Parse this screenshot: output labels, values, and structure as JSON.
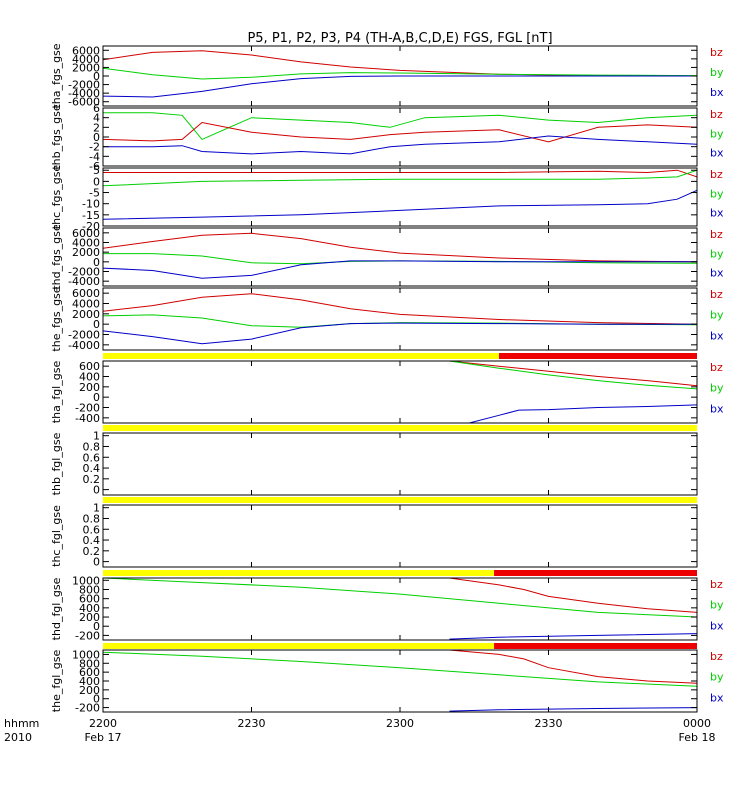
{
  "title": "P5, P1, P2, P3, P4 (TH-A,B,C,D,E) FGS, FGL [nT]",
  "time_axis": {
    "label_top": "hhmm",
    "label_bottom": "2010",
    "ticks": [
      {
        "t": 0,
        "label": "2200",
        "date": "Feb 17"
      },
      {
        "t": 30,
        "label": "2230",
        "date": ""
      },
      {
        "t": 60,
        "label": "2300",
        "date": ""
      },
      {
        "t": 90,
        "label": "2330",
        "date": ""
      },
      {
        "t": 120,
        "label": "0000",
        "date": "Feb 18"
      }
    ]
  },
  "legend_names": [
    "bz",
    "by",
    "bx"
  ],
  "colors": {
    "bz": "#d00000",
    "by": "#00d000",
    "bx": "#0000c8",
    "flag_yellow": "#ffff00",
    "flag_red": "#ee0000"
  },
  "chart_data": {
    "type": "line",
    "x_unit": "minutes after 2200 UT, 2010 Feb 17",
    "panels": [
      {
        "ylabel": "tha_fgs_gse",
        "ylim": [
          -7000,
          7000
        ],
        "yticks": [
          6000,
          4000,
          2000,
          0,
          -2000,
          -4000,
          -6000
        ],
        "series": [
          {
            "name": "bz",
            "x": [
              0,
              10,
              20,
              30,
              40,
              50,
              60,
              80,
              100,
              120
            ],
            "y": [
              3800,
              5500,
              5900,
              4900,
              3300,
              2100,
              1300,
              400,
              100,
              0
            ]
          },
          {
            "name": "by",
            "x": [
              0,
              10,
              20,
              30,
              40,
              50,
              60,
              80,
              100,
              120
            ],
            "y": [
              1800,
              300,
              -700,
              -300,
              500,
              800,
              700,
              400,
              200,
              100
            ]
          },
          {
            "name": "bx",
            "x": [
              0,
              10,
              20,
              30,
              40,
              50,
              60,
              80,
              100,
              120
            ],
            "y": [
              -4700,
              -4900,
              -3600,
              -1800,
              -600,
              -100,
              0,
              0,
              0,
              0
            ]
          }
        ]
      },
      {
        "ylabel": "thb_fgs_gse",
        "ylim": [
          -6,
          6
        ],
        "yticks": [
          6,
          4,
          2,
          0,
          -2,
          -4,
          -6
        ],
        "series": [
          {
            "name": "by",
            "x": [
              0,
              10,
              16,
              20,
              30,
              40,
              50,
              58,
              65,
              80,
              90,
              100,
              110,
              120
            ],
            "y": [
              5,
              5,
              4.5,
              -0.5,
              4,
              3.5,
              3,
              2,
              4,
              4.5,
              3.5,
              3,
              4,
              4.5
            ]
          },
          {
            "name": "bz",
            "x": [
              0,
              10,
              16,
              20,
              30,
              40,
              50,
              58,
              65,
              80,
              90,
              100,
              110,
              120
            ],
            "y": [
              -0.5,
              -0.8,
              -0.5,
              3,
              1,
              0,
              -0.5,
              0.5,
              1,
              1.5,
              -1,
              2,
              2.5,
              2
            ]
          },
          {
            "name": "bx",
            "x": [
              0,
              10,
              16,
              20,
              30,
              40,
              50,
              58,
              65,
              80,
              90,
              100,
              110,
              120
            ],
            "y": [
              -2,
              -2,
              -1.8,
              -3,
              -3.5,
              -3,
              -3.5,
              -2,
              -1.5,
              -1,
              0.2,
              -0.5,
              -1,
              -1.5
            ]
          }
        ]
      },
      {
        "ylabel": "thc_fgs_gse",
        "ylim": [
          -20,
          6
        ],
        "yticks": [
          5,
          0,
          -5,
          -10,
          -15,
          -20
        ],
        "series": [
          {
            "name": "bz",
            "x": [
              0,
              20,
              40,
              60,
              80,
              100,
              110,
              116,
              120
            ],
            "y": [
              4,
              4,
              4,
              4,
              4,
              4.5,
              4,
              5,
              2
            ]
          },
          {
            "name": "by",
            "x": [
              0,
              20,
              40,
              60,
              80,
              100,
              110,
              116,
              120
            ],
            "y": [
              -2,
              0,
              0.5,
              1,
              1,
              1,
              1.5,
              2,
              5
            ]
          },
          {
            "name": "bx",
            "x": [
              0,
              20,
              40,
              60,
              80,
              100,
              110,
              116,
              120
            ],
            "y": [
              -17,
              -16,
              -15,
              -13,
              -11,
              -10.5,
              -10,
              -8,
              -4
            ]
          }
        ]
      },
      {
        "ylabel": "thd_fgs_gse",
        "ylim": [
          -5000,
          7000
        ],
        "yticks": [
          6000,
          4000,
          2000,
          0,
          -2000,
          -4000
        ],
        "series": [
          {
            "name": "bz",
            "x": [
              0,
              10,
              20,
              30,
              40,
              50,
              60,
              80,
              100,
              120
            ],
            "y": [
              2800,
              4200,
              5500,
              5900,
              4800,
              3000,
              1800,
              800,
              200,
              0
            ]
          },
          {
            "name": "by",
            "x": [
              0,
              10,
              20,
              30,
              40,
              50,
              60,
              80,
              100,
              120
            ],
            "y": [
              1700,
              1700,
              1200,
              -200,
              -400,
              100,
              200,
              100,
              -200,
              -300
            ]
          },
          {
            "name": "bx",
            "x": [
              0,
              10,
              20,
              30,
              40,
              50,
              60,
              80,
              100,
              120
            ],
            "y": [
              -1300,
              -1800,
              -3400,
              -2800,
              -600,
              200,
              200,
              0,
              0,
              0
            ]
          }
        ]
      },
      {
        "ylabel": "the_fgs_gse",
        "ylim": [
          -5000,
          7000
        ],
        "yticks": [
          6000,
          4000,
          2000,
          0,
          -2000,
          -4000
        ],
        "series": [
          {
            "name": "bz",
            "x": [
              0,
              10,
              20,
              30,
              40,
              50,
              60,
              80,
              100,
              120
            ],
            "y": [
              2500,
              3600,
              5200,
              5900,
              4700,
              3000,
              1900,
              900,
              300,
              0
            ]
          },
          {
            "name": "by",
            "x": [
              0,
              10,
              20,
              30,
              40,
              50,
              60,
              80,
              100,
              120
            ],
            "y": [
              1600,
              1800,
              1200,
              -300,
              -600,
              100,
              300,
              200,
              0,
              -100
            ]
          },
          {
            "name": "bx",
            "x": [
              0,
              10,
              20,
              30,
              40,
              50,
              60,
              80,
              100,
              120
            ],
            "y": [
              -1300,
              -2400,
              -3800,
              -2900,
              -700,
              100,
              200,
              100,
              0,
              0
            ]
          }
        ]
      },
      {
        "ylabel": "tha_fgl_gse",
        "ylim": [
          -500,
          700
        ],
        "yticks": [
          600,
          400,
          200,
          0,
          -200,
          -400
        ],
        "flag": {
          "yellow": [
            0,
            80
          ],
          "red": [
            80,
            120
          ]
        },
        "series": [
          {
            "name": "bz",
            "x": [
              70,
              80,
              90,
              100,
              110,
              120
            ],
            "y": [
              700,
              600,
              500,
              400,
              320,
              220
            ]
          },
          {
            "name": "by",
            "x": [
              70,
              80,
              90,
              100,
              110,
              120
            ],
            "y": [
              700,
              560,
              430,
              320,
              230,
              160
            ]
          },
          {
            "name": "bx",
            "x": [
              74,
              80,
              84,
              90,
              100,
              110,
              120
            ],
            "y": [
              -500,
              -350,
              -250,
              -240,
              -200,
              -180,
              -150
            ]
          }
        ]
      },
      {
        "ylabel": "thb_fgl_gse",
        "ylim": [
          -0.1,
          1.05
        ],
        "yticks": [
          1.0,
          0.8,
          0.6,
          0.4,
          0.2,
          0.0
        ],
        "flag": {
          "yellow": [
            0,
            120
          ]
        },
        "series": []
      },
      {
        "ylabel": "thc_fgl_gse",
        "ylim": [
          -0.1,
          1.05
        ],
        "yticks": [
          1.0,
          0.8,
          0.6,
          0.4,
          0.2,
          0.0
        ],
        "flag": {
          "yellow": [
            0,
            120
          ]
        },
        "series": []
      },
      {
        "ylabel": "thd_fgl_gse",
        "ylim": [
          -300,
          1050
        ],
        "yticks": [
          1000,
          800,
          600,
          400,
          200,
          0,
          -200
        ],
        "flag": {
          "yellow": [
            0,
            79
          ],
          "red": [
            79,
            120
          ]
        },
        "series": [
          {
            "name": "bz",
            "x": [
              70,
              80,
              85,
              90,
              100,
              110,
              120
            ],
            "y": [
              1050,
              900,
              800,
              650,
              500,
              380,
              300
            ]
          },
          {
            "name": "by",
            "x": [
              0,
              20,
              40,
              60,
              80,
              100,
              120
            ],
            "y": [
              1050,
              950,
              850,
              700,
              500,
              300,
              200
            ]
          },
          {
            "name": "bx",
            "x": [
              70,
              80,
              100,
              120
            ],
            "y": [
              -280,
              -240,
              -200,
              -160
            ]
          }
        ]
      },
      {
        "ylabel": "the_fgl_gse",
        "ylim": [
          -300,
          1100
        ],
        "yticks": [
          1000,
          800,
          600,
          400,
          200,
          0,
          -200
        ],
        "flag": {
          "yellow": [
            0,
            79
          ],
          "red": [
            79,
            120
          ]
        },
        "series": [
          {
            "name": "bz",
            "x": [
              70,
              80,
              85,
              90,
              100,
              110,
              120
            ],
            "y": [
              1100,
              1000,
              900,
              700,
              500,
              400,
              350
            ]
          },
          {
            "name": "by",
            "x": [
              0,
              20,
              40,
              60,
              80,
              100,
              120
            ],
            "y": [
              1050,
              960,
              840,
              700,
              540,
              380,
              280
            ]
          },
          {
            "name": "bx",
            "x": [
              70,
              80,
              100,
              120
            ],
            "y": [
              -280,
              -250,
              -220,
              -200
            ]
          }
        ]
      }
    ]
  }
}
